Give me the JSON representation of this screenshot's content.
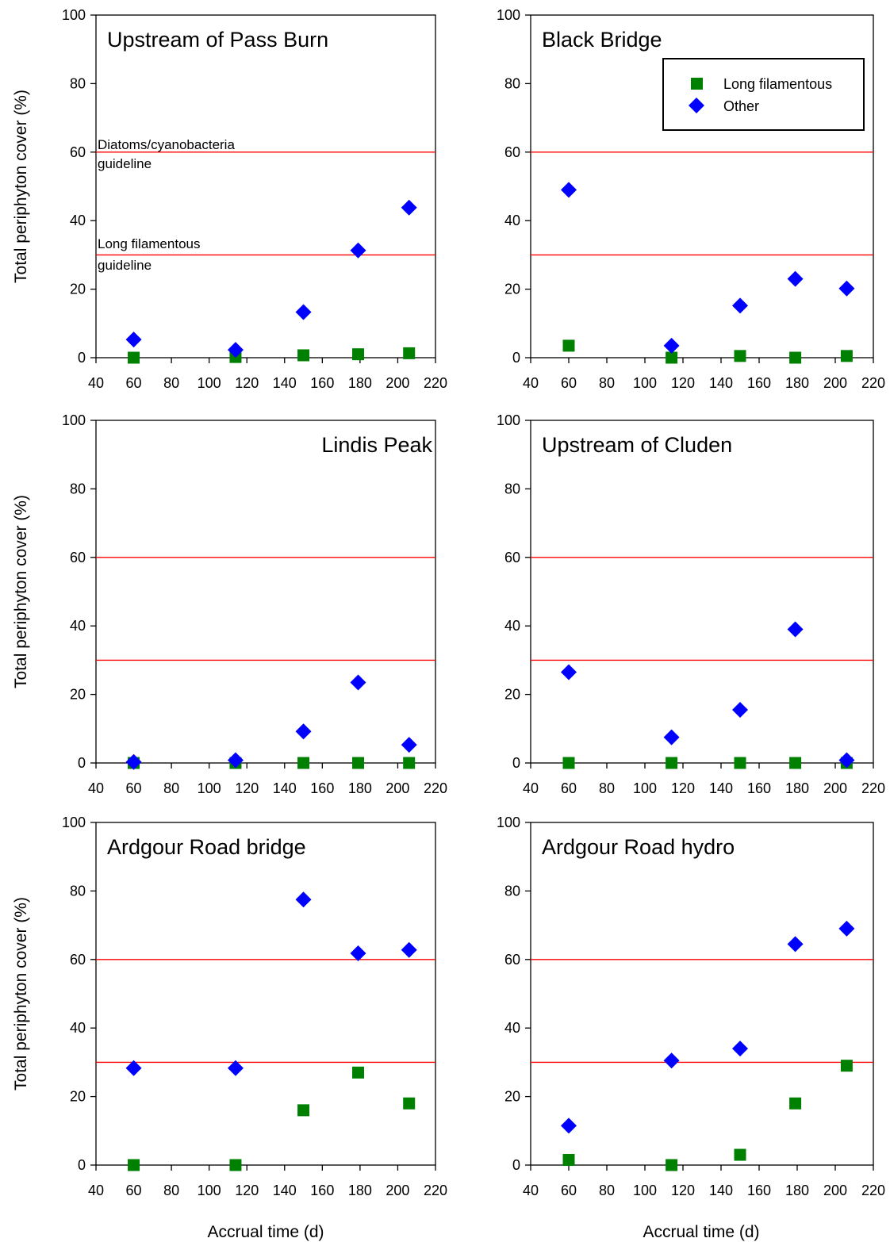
{
  "y_axis_label": "Total periphyton cover (%)",
  "x_axis_label": "Accrual time (d)",
  "guideline_labels": {
    "diatoms": [
      "Diatoms/cyanobacteria",
      "guideline"
    ],
    "long_filamentous": [
      "Long filamentous",
      "guideline"
    ]
  },
  "legend": {
    "placement": "top-right of panel 2",
    "items": [
      {
        "name": "Long filamentous",
        "marker": "square",
        "color": "#008000"
      },
      {
        "name": "Other",
        "marker": "diamond",
        "color": "#0000ff"
      }
    ]
  },
  "colors": {
    "long_filamentous": "#008000",
    "other": "#0000ff",
    "guideline": "#ff0000"
  },
  "chart_data": [
    {
      "type": "scatter",
      "title": "Upstream of Pass Burn",
      "title_align": "left",
      "xlim": [
        40,
        220
      ],
      "ylim": [
        0,
        100
      ],
      "xticks": [
        40,
        60,
        80,
        100,
        120,
        140,
        160,
        180,
        200,
        220
      ],
      "yticks": [
        0,
        20,
        40,
        60,
        80,
        100
      ],
      "guidelines": [
        60,
        30
      ],
      "series": [
        {
          "name": "Long filamentous",
          "x": [
            60,
            114,
            150,
            179,
            206
          ],
          "y": [
            0,
            0.2,
            0.7,
            1,
            1.3
          ]
        },
        {
          "name": "Other",
          "x": [
            60,
            114,
            150,
            179,
            206
          ],
          "y": [
            5.3,
            2.3,
            13.3,
            31.3,
            43.8
          ]
        }
      ]
    },
    {
      "type": "scatter",
      "title": "Black Bridge",
      "title_align": "left",
      "xlim": [
        40,
        220
      ],
      "ylim": [
        0,
        100
      ],
      "xticks": [
        40,
        60,
        80,
        100,
        120,
        140,
        160,
        180,
        200,
        220
      ],
      "yticks": [
        0,
        20,
        40,
        60,
        80,
        100
      ],
      "guidelines": [
        60,
        30
      ],
      "series": [
        {
          "name": "Long filamentous",
          "x": [
            60,
            114,
            150,
            179,
            206
          ],
          "y": [
            3.5,
            0,
            0.5,
            0,
            0.5
          ]
        },
        {
          "name": "Other",
          "x": [
            60,
            114,
            150,
            179,
            206
          ],
          "y": [
            49,
            3.5,
            15.2,
            23,
            20.2
          ]
        }
      ]
    },
    {
      "type": "scatter",
      "title": "Lindis Peak",
      "title_align": "right",
      "xlim": [
        40,
        220
      ],
      "ylim": [
        0,
        100
      ],
      "xticks": [
        40,
        60,
        80,
        100,
        120,
        140,
        160,
        180,
        200,
        220
      ],
      "yticks": [
        0,
        20,
        40,
        60,
        80,
        100
      ],
      "guidelines": [
        60,
        30
      ],
      "series": [
        {
          "name": "Long filamentous",
          "x": [
            60,
            114,
            150,
            179,
            206
          ],
          "y": [
            0,
            0,
            0,
            0,
            0
          ]
        },
        {
          "name": "Other",
          "x": [
            60,
            114,
            150,
            179,
            206
          ],
          "y": [
            0.3,
            0.8,
            9.2,
            23.5,
            5.3
          ]
        }
      ]
    },
    {
      "type": "scatter",
      "title": "Upstream of Cluden",
      "title_align": "left",
      "xlim": [
        40,
        220
      ],
      "ylim": [
        0,
        100
      ],
      "xticks": [
        40,
        60,
        80,
        100,
        120,
        140,
        160,
        180,
        200,
        220
      ],
      "yticks": [
        0,
        20,
        40,
        60,
        80,
        100
      ],
      "guidelines": [
        60,
        30
      ],
      "series": [
        {
          "name": "Long filamentous",
          "x": [
            60,
            114,
            150,
            179,
            206
          ],
          "y": [
            0,
            0,
            0,
            0,
            0
          ]
        },
        {
          "name": "Other",
          "x": [
            60,
            114,
            150,
            179,
            206
          ],
          "y": [
            26.5,
            7.5,
            15.5,
            39,
            0.8
          ]
        }
      ]
    },
    {
      "type": "scatter",
      "title": "Ardgour Road bridge",
      "title_align": "left",
      "xlim": [
        40,
        220
      ],
      "ylim": [
        0,
        100
      ],
      "xticks": [
        40,
        60,
        80,
        100,
        120,
        140,
        160,
        180,
        200,
        220
      ],
      "yticks": [
        0,
        20,
        40,
        60,
        80,
        100
      ],
      "guidelines": [
        60,
        30
      ],
      "series": [
        {
          "name": "Long filamentous",
          "x": [
            60,
            114,
            150,
            179,
            206
          ],
          "y": [
            0,
            0,
            16,
            27,
            18
          ]
        },
        {
          "name": "Other",
          "x": [
            60,
            114,
            150,
            179,
            206
          ],
          "y": [
            28.3,
            28.3,
            77.5,
            61.8,
            62.8
          ]
        }
      ]
    },
    {
      "type": "scatter",
      "title": "Ardgour Road hydro",
      "title_align": "left",
      "xlim": [
        40,
        220
      ],
      "ylim": [
        0,
        100
      ],
      "xticks": [
        40,
        60,
        80,
        100,
        120,
        140,
        160,
        180,
        200,
        220
      ],
      "yticks": [
        0,
        20,
        40,
        60,
        80,
        100
      ],
      "guidelines": [
        60,
        30
      ],
      "series": [
        {
          "name": "Long filamentous",
          "x": [
            60,
            114,
            150,
            179,
            206
          ],
          "y": [
            1.5,
            0,
            3,
            18,
            29
          ]
        },
        {
          "name": "Other",
          "x": [
            60,
            114,
            150,
            179,
            206
          ],
          "y": [
            11.5,
            30.5,
            34,
            64.5,
            69
          ]
        }
      ]
    }
  ]
}
